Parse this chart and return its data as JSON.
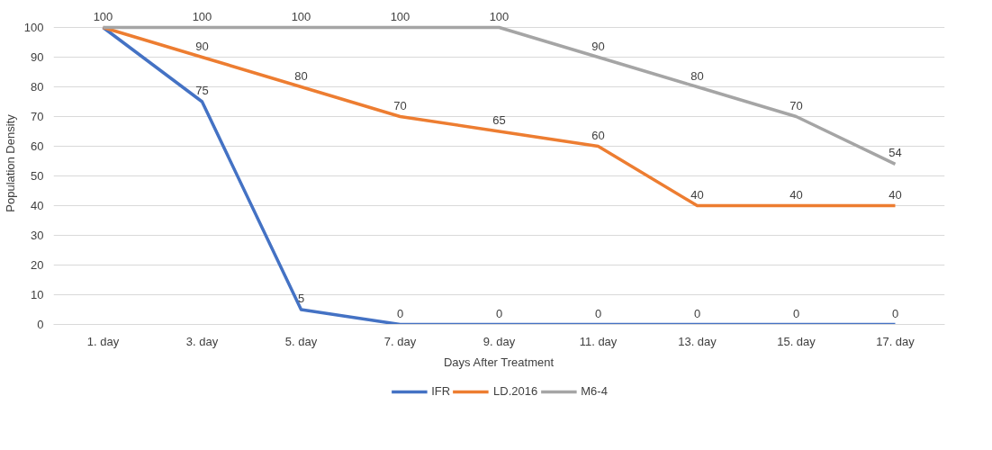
{
  "chart_data": {
    "type": "line",
    "xlabel": "Days After Treatment",
    "ylabel": "Population Density",
    "categories": [
      "1. day",
      "3. day",
      "5. day",
      "7. day",
      "9. day",
      "11. day",
      "13. day",
      "15. day",
      "17. day"
    ],
    "series": [
      {
        "name": "IFR",
        "color": "#4472c4",
        "values": [
          100,
          75,
          5,
          0,
          0,
          0,
          0,
          0,
          0
        ],
        "value_labels": [
          "100",
          "75",
          "5",
          "0",
          "0",
          "0",
          "0",
          "0",
          "0"
        ]
      },
      {
        "name": "LD.2016",
        "color": "#ed7d31",
        "values": [
          100,
          90,
          80,
          70,
          65,
          60,
          40,
          40,
          40
        ],
        "value_labels": [
          null,
          "90",
          "80",
          "70",
          "65",
          "60",
          "40",
          "40",
          "40"
        ]
      },
      {
        "name": "M6-4",
        "color": "#a5a5a5",
        "values": [
          100,
          100,
          100,
          100,
          100,
          90,
          80,
          70,
          54
        ],
        "value_labels": [
          null,
          "100",
          "100",
          "100",
          "100",
          "90",
          "80",
          "70",
          "54"
        ]
      }
    ],
    "ylim": [
      0,
      100
    ],
    "yticks": [
      0,
      10,
      20,
      30,
      40,
      50,
      60,
      70,
      80,
      90,
      100
    ],
    "grid": "y",
    "legend": "bottom",
    "marker": "none",
    "line_style": "solid"
  }
}
